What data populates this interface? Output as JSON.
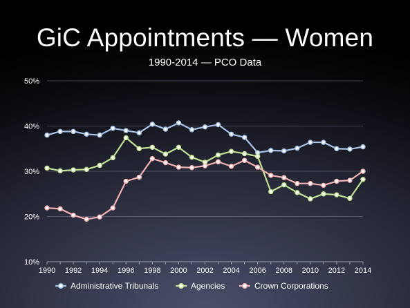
{
  "header": {
    "title": "GiC Appointments — Women",
    "subtitle": "1990-2014 — PCO Data"
  },
  "chart_data": {
    "type": "line",
    "title": "GiC Appointments — Women",
    "subtitle": "1990-2014 — PCO Data",
    "xlabel": "",
    "ylabel": "",
    "x": [
      1990,
      1991,
      1992,
      1993,
      1994,
      1995,
      1996,
      1997,
      1998,
      1999,
      2000,
      2001,
      2002,
      2003,
      2004,
      2005,
      2006,
      2007,
      2008,
      2009,
      2010,
      2011,
      2012,
      2013,
      2014
    ],
    "x_tick_labels": [
      "1990",
      "1992",
      "1994",
      "1996",
      "1998",
      "2000",
      "2002",
      "2004",
      "2006",
      "2008",
      "2010",
      "2012",
      "2014"
    ],
    "x_ticks": [
      1990,
      1992,
      1994,
      1996,
      1998,
      2000,
      2002,
      2004,
      2006,
      2008,
      2010,
      2012,
      2014
    ],
    "xlim": [
      1990,
      2014
    ],
    "ylim": [
      10,
      50
    ],
    "y_ticks": [
      10,
      20,
      30,
      40,
      50
    ],
    "y_tick_labels": [
      "10%",
      "20%",
      "30%",
      "40%",
      "50%"
    ],
    "grid": true,
    "legend_position": "bottom",
    "series": [
      {
        "name": "Administrative Tribunals",
        "color": "#a9c4e8",
        "values": [
          38.0,
          38.8,
          38.8,
          38.2,
          38.0,
          39.5,
          39.0,
          38.5,
          40.4,
          39.3,
          40.7,
          39.2,
          39.8,
          40.3,
          38.2,
          37.5,
          34.1,
          34.6,
          34.5,
          35.1,
          36.4,
          36.4,
          35.0,
          34.9,
          35.4
        ]
      },
      {
        "name": "Agencies",
        "color": "#c2e295",
        "values": [
          30.7,
          30.1,
          30.3,
          30.4,
          31.3,
          33.0,
          37.4,
          35.0,
          35.3,
          33.8,
          35.3,
          33.1,
          32.0,
          33.6,
          34.4,
          33.9,
          33.3,
          25.5,
          27.0,
          25.3,
          23.9,
          25.0,
          24.8,
          24.0,
          28.2
        ]
      },
      {
        "name": "Crown Corporations",
        "color": "#f4b4b6",
        "values": [
          21.9,
          21.7,
          20.3,
          19.4,
          19.9,
          21.9,
          27.8,
          28.7,
          32.8,
          31.9,
          30.9,
          30.8,
          31.2,
          32.1,
          31.1,
          32.4,
          30.9,
          29.1,
          28.6,
          27.3,
          27.3,
          26.9,
          27.8,
          28.0,
          30.0
        ]
      }
    ]
  }
}
